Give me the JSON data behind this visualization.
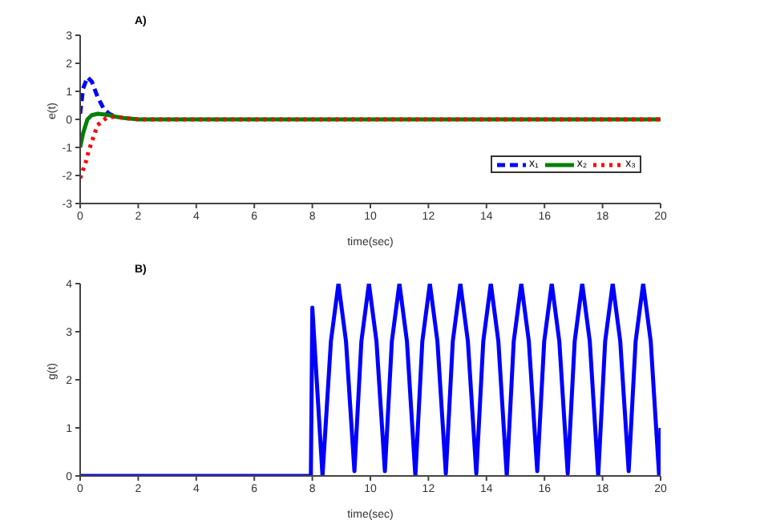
{
  "chart_data": [
    {
      "type": "line",
      "title": "A)",
      "xlabel": "time(sec)",
      "ylabel": "e(t)",
      "xlim": [
        0,
        20
      ],
      "xticks": [
        0,
        2,
        4,
        6,
        8,
        10,
        12,
        14,
        16,
        18,
        20
      ],
      "ylim": [
        -3,
        3
      ],
      "yticks": [
        -3,
        -2,
        -1,
        0,
        1,
        2,
        3
      ],
      "legend": "right",
      "marker": "none",
      "series": [
        {
          "name": "x₁",
          "color": "#0000ff",
          "line_style": "dashed",
          "x": [
            0,
            0.1,
            0.25,
            0.4,
            0.6,
            0.8,
            1,
            1.2
          ],
          "values": [
            0.2,
            1.1,
            1.5,
            1.35,
            0.8,
            0.4,
            0.2,
            0.1
          ]
        },
        {
          "name": "x₂",
          "color": "#008000",
          "line_style": "solid",
          "x": [
            0,
            0.1,
            0.25,
            0.4,
            0.6,
            0.8,
            1,
            1.2,
            1.5,
            2,
            4,
            8,
            12,
            16,
            20
          ],
          "values": [
            -1,
            -0.5,
            0,
            0.15,
            0.2,
            0.18,
            0.15,
            0.1,
            0.05,
            0,
            0,
            0,
            0,
            0,
            0
          ]
        },
        {
          "name": "x₃",
          "color": "#ff0000",
          "line_style": "dotted",
          "x": [
            0,
            0.1,
            0.2,
            0.3,
            0.4,
            0.6,
            0.9,
            1.2,
            1.5,
            2,
            4,
            8,
            12,
            16,
            20
          ],
          "values": [
            -2.1,
            -1.8,
            -1.5,
            -1.1,
            -0.8,
            -0.2,
            0.05,
            0.1,
            0.05,
            0,
            0,
            0,
            0,
            0,
            0
          ]
        }
      ]
    },
    {
      "type": "line",
      "title": "B)",
      "xlabel": "time(sec)",
      "ylabel": "g(t)",
      "xlim": [
        0,
        20
      ],
      "xticks": [
        0,
        2,
        4,
        6,
        8,
        10,
        12,
        14,
        16,
        18,
        20
      ],
      "ylim": [
        0,
        4
      ],
      "yticks": [
        0,
        1,
        2,
        3,
        4
      ],
      "legend": false,
      "marker": "none",
      "series": [
        {
          "color": "#0000ff",
          "line_style": "solid",
          "x": [
            0,
            4,
            7.95,
            8,
            8.35,
            8.64,
            8.9,
            9.16,
            9.45,
            9.69,
            9.95,
            10.21,
            10.5,
            10.74,
            11,
            11.26,
            11.55,
            11.79,
            12.05,
            12.31,
            12.6,
            12.84,
            13.1,
            13.36,
            13.65,
            13.89,
            14.15,
            14.41,
            14.7,
            14.94,
            15.2,
            15.46,
            15.75,
            15.99,
            16.25,
            16.51,
            16.8,
            17.04,
            17.3,
            17.56,
            17.85,
            18.09,
            18.35,
            18.61,
            18.9,
            19.14,
            19.4,
            19.66,
            19.95,
            20
          ],
          "values": [
            0,
            0,
            0,
            3.5,
            0,
            2.8,
            4,
            2.8,
            0.1,
            2.8,
            4,
            2.8,
            0.1,
            2.8,
            4,
            2.8,
            0,
            2.8,
            4,
            2.8,
            0.05,
            2.8,
            4,
            2.8,
            0.05,
            2.8,
            4,
            2.8,
            0,
            2.8,
            4,
            2.8,
            0.1,
            2.8,
            4,
            2.8,
            0.05,
            2.8,
            4,
            2.8,
            0,
            2.8,
            4,
            2.8,
            0.1,
            2.8,
            4,
            2.8,
            0,
            1
          ]
        }
      ]
    }
  ]
}
